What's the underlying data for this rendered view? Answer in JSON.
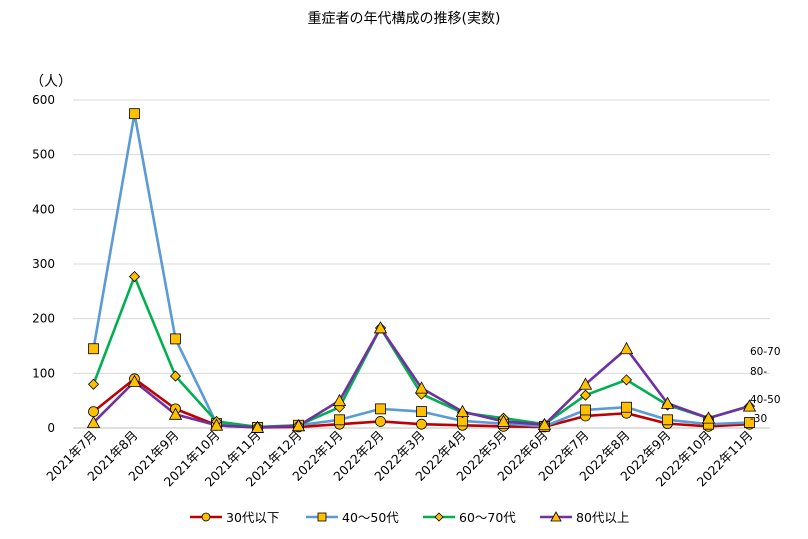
{
  "chart_data": {
    "type": "line",
    "title": "重症者の年代構成の推移(実数)",
    "ylabel": "（人）",
    "xlabel": "",
    "ylim": [
      0,
      600
    ],
    "yticks": [
      0,
      100,
      200,
      300,
      400,
      500,
      600
    ],
    "grid": true,
    "legend_position": "bottom",
    "categories": [
      "2021年7月",
      "2021年8月",
      "2021年9月",
      "2021年10月",
      "2021年11月",
      "2021年12月",
      "2022年1月",
      "2022年2月",
      "2022年3月",
      "2022年4月",
      "2022年5月",
      "2022年6月",
      "2022年7月",
      "2022年8月",
      "2022年9月",
      "2022年10月",
      "2022年11月"
    ],
    "series": [
      {
        "name": "30代以下",
        "color": "#c00000",
        "marker": "circle",
        "values": [
          30,
          90,
          35,
          5,
          1,
          2,
          7,
          12,
          7,
          5,
          3,
          2,
          22,
          27,
          8,
          3,
          7
        ]
      },
      {
        "name": "40～50代",
        "color": "#5b9bd5",
        "marker": "square",
        "values": [
          145,
          575,
          163,
          8,
          1,
          5,
          15,
          35,
          30,
          13,
          8,
          3,
          33,
          38,
          15,
          7,
          10
        ]
      },
      {
        "name": "60～70代",
        "color": "#00b050",
        "marker": "diamond",
        "values": [
          80,
          277,
          95,
          12,
          2,
          5,
          38,
          183,
          62,
          28,
          18,
          7,
          60,
          88,
          42,
          18,
          40
        ]
      },
      {
        "name": "80代以上",
        "color": "#7030a0",
        "marker": "triangle",
        "values": [
          10,
          85,
          25,
          5,
          1,
          4,
          50,
          183,
          73,
          30,
          12,
          6,
          80,
          145,
          45,
          18,
          40
        ]
      }
    ],
    "end_labels": [
      "60-70",
      "80-",
      "40-50",
      "-30"
    ]
  }
}
